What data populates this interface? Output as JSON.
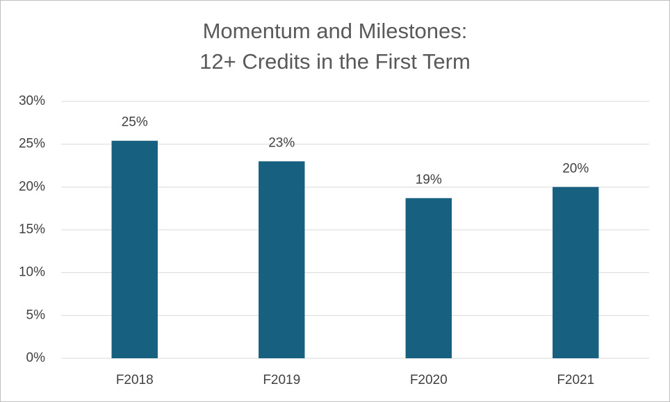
{
  "chart_data": {
    "type": "bar",
    "title": [
      "Momentum and Milestones:",
      "12+ Credits in the First Term"
    ],
    "categories": [
      "F2018",
      "F2019",
      "F2020",
      "F2021"
    ],
    "values": [
      25.4,
      23.0,
      18.7,
      20.0
    ],
    "value_labels": [
      "25%",
      "23%",
      "19%",
      "20%"
    ],
    "color": "#17607f",
    "ylim": [
      0,
      30
    ],
    "yticks": [
      {
        "value": 0,
        "label": "0%"
      },
      {
        "value": 5,
        "label": "5%"
      },
      {
        "value": 10,
        "label": "10%"
      },
      {
        "value": 15,
        "label": "15%"
      },
      {
        "value": 20,
        "label": "20%"
      },
      {
        "value": 25,
        "label": "25%"
      },
      {
        "value": 30,
        "label": "30%"
      }
    ],
    "grid": true
  }
}
